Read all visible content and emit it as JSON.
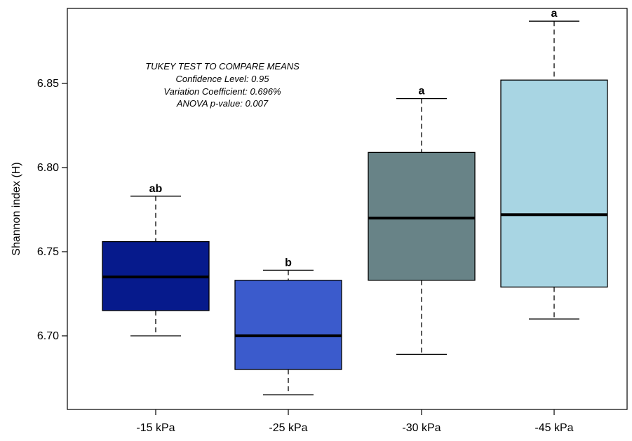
{
  "chart_data": {
    "type": "boxplot",
    "title": "",
    "xlabel": "",
    "ylabel": "Shannon index (H)",
    "ylim": [
      6.66,
      6.895
    ],
    "yticks": [
      "6.70",
      "6.75",
      "6.80",
      "6.85"
    ],
    "grid": false,
    "categories": [
      "-15 kPa",
      "-25 kPa",
      "-30 kPa",
      "-45 kPa"
    ],
    "boxes": [
      {
        "category": "-15 kPa",
        "min": 6.7,
        "q1": 6.715,
        "median": 6.735,
        "q3": 6.756,
        "max": 6.783,
        "color": "#061a8c",
        "letter": "ab"
      },
      {
        "category": "-25 kPa",
        "min": 6.665,
        "q1": 6.68,
        "median": 6.7,
        "q3": 6.733,
        "max": 6.739,
        "color": "#3b5bcc",
        "letter": "b"
      },
      {
        "category": "-30 kPa",
        "min": 6.689,
        "q1": 6.733,
        "median": 6.77,
        "q3": 6.809,
        "max": 6.841,
        "color": "#688387",
        "letter": "a"
      },
      {
        "category": "-45 kPa",
        "min": 6.71,
        "q1": 6.729,
        "median": 6.772,
        "q3": 6.852,
        "max": 6.887,
        "color": "#a8d5e3",
        "letter": "a"
      }
    ],
    "annotations": [
      "TUKEY TEST TO COMPARE MEANS",
      "Confidence Level:  0.95",
      "Variation Coefficient:  0.696%",
      "ANOVA p-value: 0.007"
    ]
  }
}
